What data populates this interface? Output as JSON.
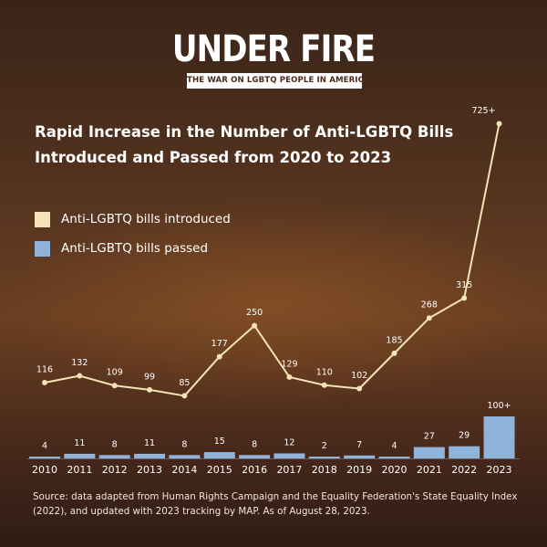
{
  "branding": {
    "logo_title": "UNDER FIRE",
    "logo_subtitle": "THE WAR ON LGBTQ PEOPLE IN AMERICA"
  },
  "colors": {
    "introduced": "#f4e4b6",
    "passed": "#8fb3da",
    "text": "#ffffff"
  },
  "chart_data": {
    "type": "bar+line",
    "title": "Rapid Increase in the Number of Anti-LGBTQ Bills Introduced and Passed from 2020 to 2023",
    "categories": [
      "2010",
      "2011",
      "2012",
      "2013",
      "2014",
      "2015",
      "2016",
      "2017",
      "2018",
      "2019",
      "2020",
      "2021",
      "2022",
      "2023"
    ],
    "series": [
      {
        "name": "Anti-LGBTQ bills introduced",
        "type": "line",
        "values": [
          116,
          132,
          109,
          99,
          85,
          177,
          250,
          129,
          110,
          102,
          185,
          268,
          315,
          725
        ],
        "labels": [
          "116",
          "132",
          "109",
          "99",
          "85",
          "177",
          "250",
          "129",
          "110",
          "102",
          "185",
          "268",
          "315",
          "725+"
        ]
      },
      {
        "name": "Anti-LGBTQ bills passed",
        "type": "bar",
        "values": [
          4,
          11,
          8,
          11,
          8,
          15,
          8,
          12,
          2,
          7,
          4,
          27,
          29,
          100
        ],
        "labels": [
          "4",
          "11",
          "8",
          "11",
          "8",
          "15",
          "8",
          "12",
          "2",
          "7",
          "4",
          "27",
          "29",
          "100+"
        ]
      }
    ],
    "legend_position": "left"
  },
  "source_note": "Source: data adapted from Human Rights Campaign and the Equality Federation's State Equality Index (2022), and updated with 2023 tracking by MAP. As of August 28, 2023."
}
